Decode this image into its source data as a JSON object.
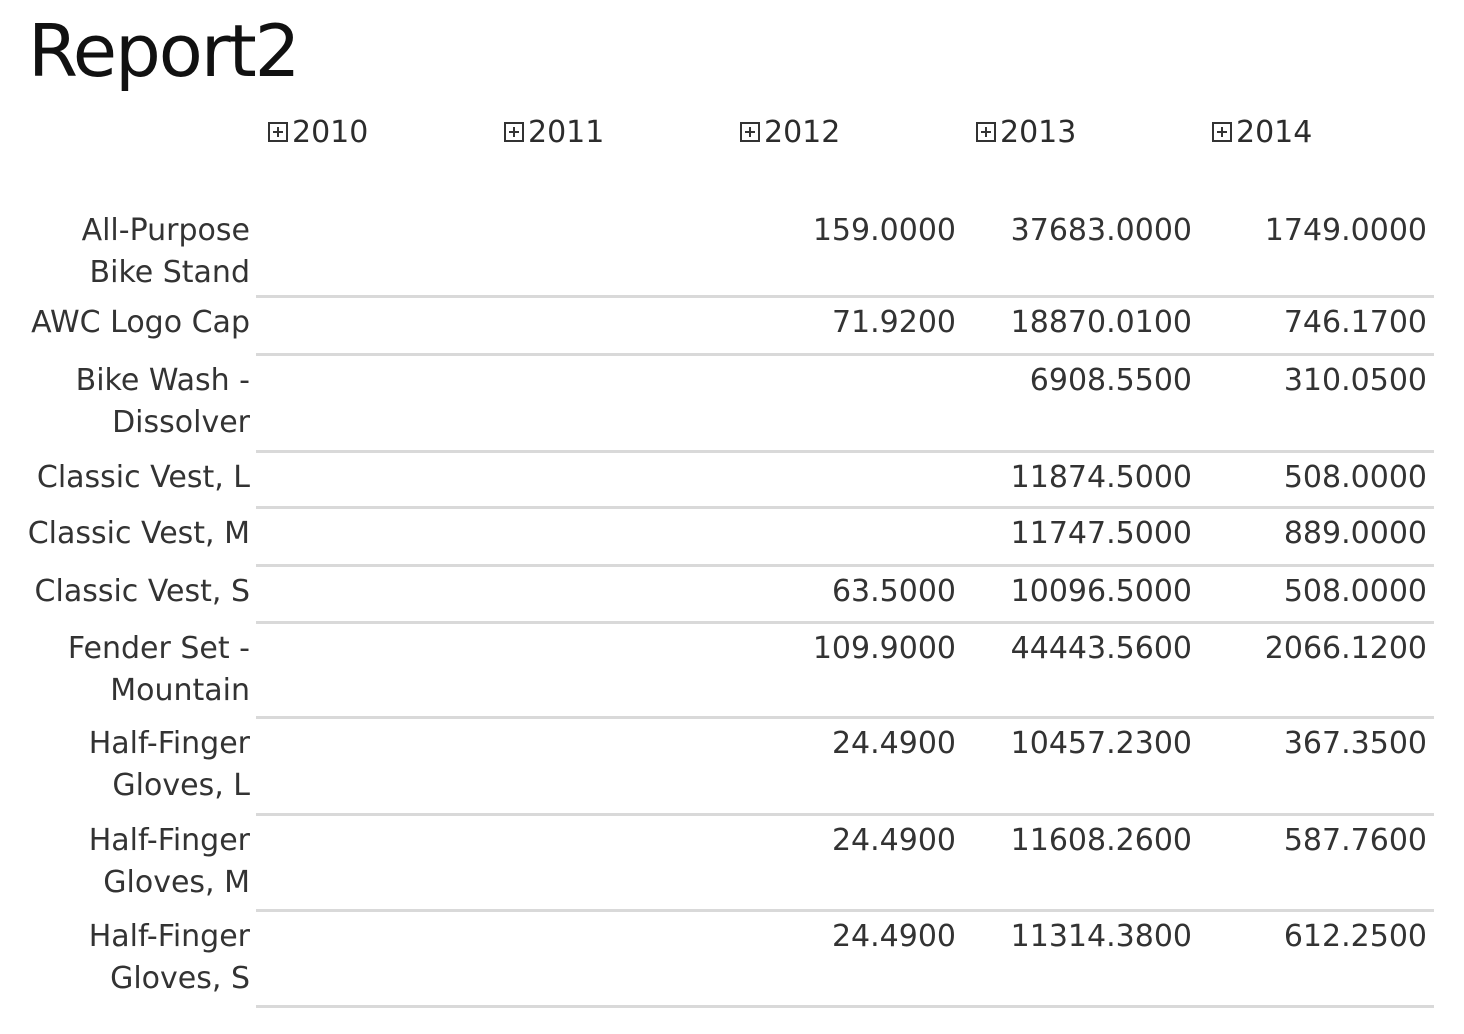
{
  "report": {
    "title": "Report2"
  },
  "columns": [
    {
      "label": "2010",
      "icon": "expand-icon"
    },
    {
      "label": "2011",
      "icon": "expand-icon"
    },
    {
      "label": "2012",
      "icon": "expand-icon"
    },
    {
      "label": "2013",
      "icon": "expand-icon"
    },
    {
      "label": "2014",
      "icon": "expand-icon"
    }
  ],
  "rows": [
    {
      "product": "All-Purpose Bike Stand",
      "y2010": "",
      "y2011": "",
      "y2012": "159.0000",
      "y2013": "37683.0000",
      "y2014": "1749.0000"
    },
    {
      "product": "AWC Logo Cap",
      "y2010": "",
      "y2011": "",
      "y2012": "71.9200",
      "y2013": "18870.0100",
      "y2014": "746.1700"
    },
    {
      "product": "Bike Wash - Dissolver",
      "y2010": "",
      "y2011": "",
      "y2012": "",
      "y2013": "6908.5500",
      "y2014": "310.0500"
    },
    {
      "product": "Classic Vest, L",
      "y2010": "",
      "y2011": "",
      "y2012": "",
      "y2013": "11874.5000",
      "y2014": "508.0000"
    },
    {
      "product": "Classic Vest, M",
      "y2010": "",
      "y2011": "",
      "y2012": "",
      "y2013": "11747.5000",
      "y2014": "889.0000"
    },
    {
      "product": "Classic Vest, S",
      "y2010": "",
      "y2011": "",
      "y2012": "63.5000",
      "y2013": "10096.5000",
      "y2014": "508.0000"
    },
    {
      "product": "Fender Set - Mountain",
      "y2010": "",
      "y2011": "",
      "y2012": "109.9000",
      "y2013": "44443.5600",
      "y2014": "2066.1200"
    },
    {
      "product": "Half-Finger Gloves, L",
      "y2010": "",
      "y2011": "",
      "y2012": "24.4900",
      "y2013": "10457.2300",
      "y2014": "367.3500"
    },
    {
      "product": "Half-Finger Gloves, M",
      "y2010": "",
      "y2011": "",
      "y2012": "24.4900",
      "y2013": "11608.2600",
      "y2014": "587.7600"
    },
    {
      "product": "Half-Finger Gloves, S",
      "y2010": "",
      "y2011": "",
      "y2012": "24.4900",
      "y2013": "11314.3800",
      "y2014": "612.2500"
    }
  ]
}
